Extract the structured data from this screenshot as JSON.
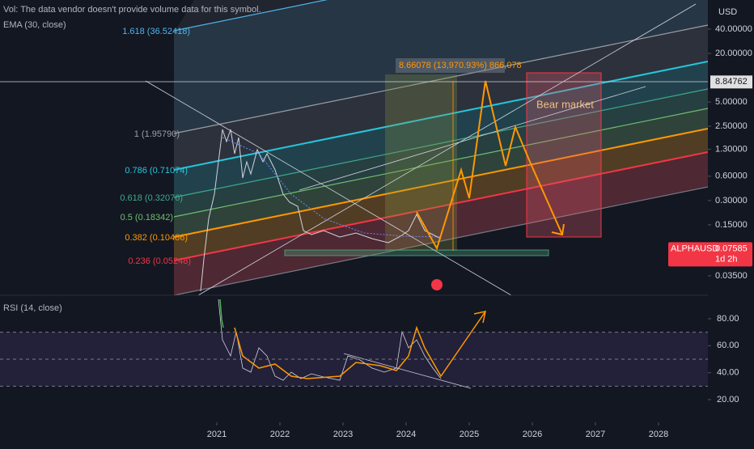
{
  "header": {
    "vol_note": "Vol: The data vendor doesn't provide volume data for this symbol.",
    "ema_label": "EMA (30, close)"
  },
  "price_axis": {
    "currency": "USD",
    "log_scale": true,
    "ticks": [
      {
        "value": 40,
        "label": "40.00000"
      },
      {
        "value": 20,
        "label": "20.00000"
      },
      {
        "value": 5,
        "label": "5.00000"
      },
      {
        "value": 2.5,
        "label": "2.50000"
      },
      {
        "value": 1.3,
        "label": "1.30000"
      },
      {
        "value": 0.6,
        "label": "0.60000"
      },
      {
        "value": 0.3,
        "label": "0.30000"
      },
      {
        "value": 0.15,
        "label": "0.15000"
      },
      {
        "value": 0.035,
        "label": "0.03500"
      }
    ],
    "high_marker": {
      "value": 8.84762,
      "label": "8.84762"
    },
    "last": {
      "symbol": "ALPHAUSD",
      "value": 0.07585,
      "label": "0.07585",
      "countdown": "1d 2h"
    }
  },
  "fib_levels": [
    {
      "label": "1.618 (36.52418)",
      "color": "#4fb3e8"
    },
    {
      "label": "1 (1.95790)",
      "color": "#9aa0a6"
    },
    {
      "label": "0.786 (0.71074)",
      "color": "#26c6da"
    },
    {
      "label": "0.618 (0.32076)",
      "color": "#3fa98a"
    },
    {
      "label": "0.5 (0.18342)",
      "color": "#6fbf6f"
    },
    {
      "label": "0.382 (0.10486)",
      "color": "#ff9800"
    },
    {
      "label": "0.236 (0.05248)",
      "color": "#f23645"
    }
  ],
  "annotations": {
    "measure": "8.66078 (13,970.93%) 866,078",
    "zone": "Bear market"
  },
  "rsi": {
    "label": "RSI (14, close)",
    "ticks": [
      {
        "value": 80,
        "label": "80.00"
      },
      {
        "value": 60,
        "label": "60.00"
      },
      {
        "value": 40,
        "label": "40.00"
      },
      {
        "value": 20,
        "label": "20.00"
      }
    ]
  },
  "time_axis": [
    2021,
    2022,
    2023,
    2024,
    2025,
    2026,
    2027,
    2028
  ]
}
